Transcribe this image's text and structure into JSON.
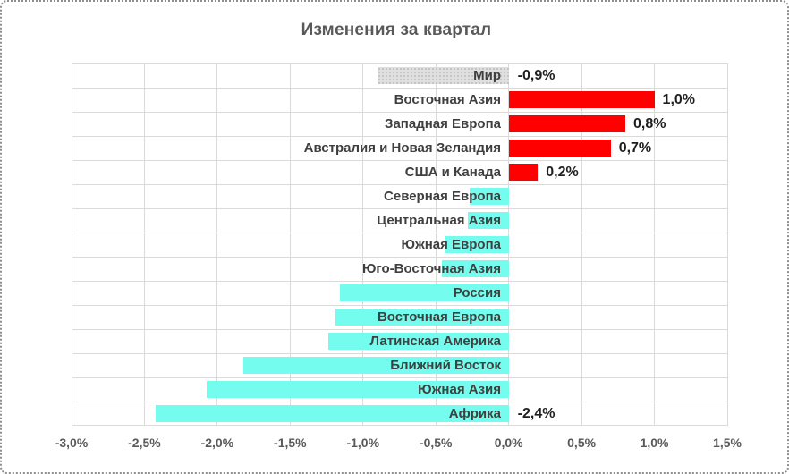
{
  "chart_data": {
    "type": "bar",
    "orientation": "horizontal",
    "title": "Изменения за квартал",
    "xlabel": "",
    "ylabel": "",
    "xlim": [
      -3.0,
      1.5
    ],
    "grid": true,
    "legend": "none",
    "xticks": [
      {
        "v": -3.0,
        "label": "-3,0%"
      },
      {
        "v": -2.5,
        "label": "-2,5%"
      },
      {
        "v": -2.0,
        "label": "-2,0%"
      },
      {
        "v": -1.5,
        "label": "-1,5%"
      },
      {
        "v": -1.0,
        "label": "-1,0%"
      },
      {
        "v": -0.5,
        "label": "-0,5%"
      },
      {
        "v": 0.0,
        "label": "0,0%"
      },
      {
        "v": 0.5,
        "label": "0,5%"
      },
      {
        "v": 1.0,
        "label": "1,0%"
      },
      {
        "v": 1.5,
        "label": "1,5%"
      }
    ],
    "series": [
      {
        "category": "Мир",
        "value": -0.9,
        "data_label": "-0,9%",
        "color": "pattern"
      },
      {
        "category": "Восточная Азия",
        "value": 1.0,
        "data_label": "1,0%",
        "color": "red"
      },
      {
        "category": "Западная Европа",
        "value": 0.8,
        "data_label": "0,8%",
        "color": "red"
      },
      {
        "category": "Австралия и Новая Зеландия",
        "value": 0.7,
        "data_label": "0,7%",
        "color": "red"
      },
      {
        "category": "США и Канада",
        "value": 0.2,
        "data_label": "0,2%",
        "color": "red"
      },
      {
        "category": "Северная Европа",
        "value": -0.27,
        "data_label": "",
        "color": "cyan"
      },
      {
        "category": "Центральная Азия",
        "value": -0.28,
        "data_label": "",
        "color": "cyan"
      },
      {
        "category": "Южная Европа",
        "value": -0.44,
        "data_label": "",
        "color": "cyan"
      },
      {
        "category": "Юго-Восточная Азия",
        "value": -0.46,
        "data_label": "",
        "color": "cyan"
      },
      {
        "category": "Россия",
        "value": -1.16,
        "data_label": "",
        "color": "cyan"
      },
      {
        "category": "Восточная Европа",
        "value": -1.19,
        "data_label": "",
        "color": "cyan"
      },
      {
        "category": "Латинская Америка",
        "value": -1.24,
        "data_label": "",
        "color": "cyan"
      },
      {
        "category": "Ближний Восток",
        "value": -1.82,
        "data_label": "",
        "color": "cyan"
      },
      {
        "category": "Южная Азия",
        "value": -2.07,
        "data_label": "",
        "color": "cyan"
      },
      {
        "category": "Африка",
        "value": -2.42,
        "data_label": "-2,4%",
        "color": "cyan"
      }
    ],
    "colors": {
      "red": "#FF0000",
      "cyan": "#74FDEE",
      "pattern_base": "#DFDFDF",
      "pattern_dot": "#BCBCBC",
      "gridline": "#DADADA",
      "title_text": "#595959",
      "category_text": "#3F3F3F",
      "value_text": "#1F1F1F",
      "axis_text": "#595959"
    }
  }
}
